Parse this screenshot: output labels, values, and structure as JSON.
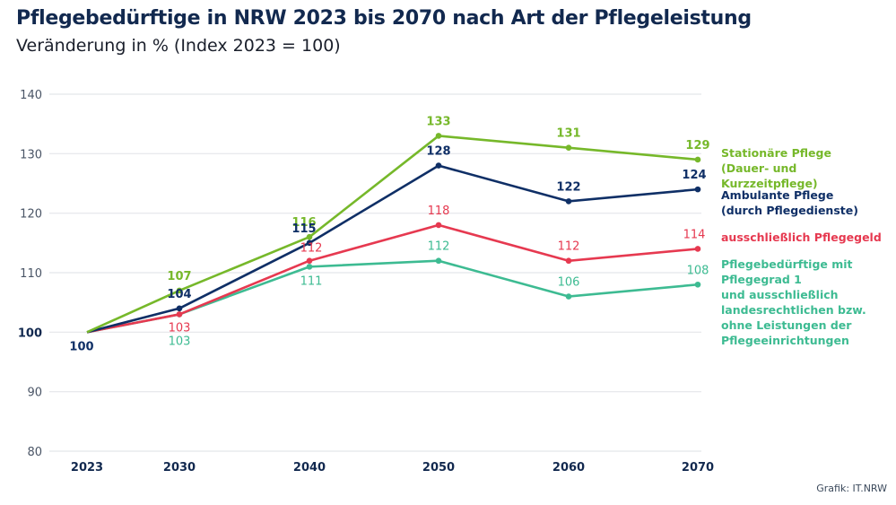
{
  "header": {
    "title": "Pflegebedürftige in NRW 2023 bis 2070 nach Art der Pflegeleistung",
    "subtitle": "Veränderung in % (Index 2023 = 100)"
  },
  "source": "Grafik: IT.NRW",
  "chart_data": {
    "type": "line",
    "title": "Pflegebedürftige in NRW 2023 bis 2070 nach Art der Pflegeleistung",
    "subtitle": "Veränderung in % (Index 2023 = 100)",
    "xlabel": "",
    "ylabel": "",
    "x": [
      "2023",
      "2030",
      "2040",
      "2050",
      "2060",
      "2070"
    ],
    "x_numeric": [
      2023,
      2030,
      2040,
      2050,
      2060,
      2070
    ],
    "ylim": [
      80,
      140
    ],
    "yticks": [
      "80",
      "90",
      "100",
      "110",
      "120",
      "130",
      "140"
    ],
    "grid": true,
    "legend_position": "right",
    "series": [
      {
        "name": "Stationäre Pflege\n(Dauer- und Kurzzeitpflege)",
        "color": "#76b82a",
        "values": [
          100,
          107,
          116,
          133,
          131,
          129
        ],
        "labels": [
          "",
          "107",
          "116",
          "133",
          "131",
          "129"
        ]
      },
      {
        "name": "Ambulante Pflege\n(durch Pflegedienste)",
        "color": "#0f2f66",
        "values": [
          100,
          104,
          115,
          128,
          122,
          124
        ],
        "labels": [
          "100",
          "104",
          "115",
          "128",
          "122",
          "124"
        ]
      },
      {
        "name": "ausschließlich Pflegegeld",
        "color": "#e63950",
        "values": [
          100,
          103,
          112,
          118,
          112,
          114
        ],
        "labels": [
          "",
          "103",
          "112",
          "118",
          "112",
          "114"
        ]
      },
      {
        "name": "Pflegebedürftige mit\nPflegegrad 1\nund ausschließlich\nlandesrechtlichen bzw.\nohne Leistungen der\nPflegeeinrichtungen",
        "color": "#3dbb92",
        "values": [
          100,
          103,
          111,
          112,
          106,
          108
        ],
        "labels": [
          "",
          "103",
          "111",
          "112",
          "106",
          "108"
        ]
      }
    ]
  }
}
